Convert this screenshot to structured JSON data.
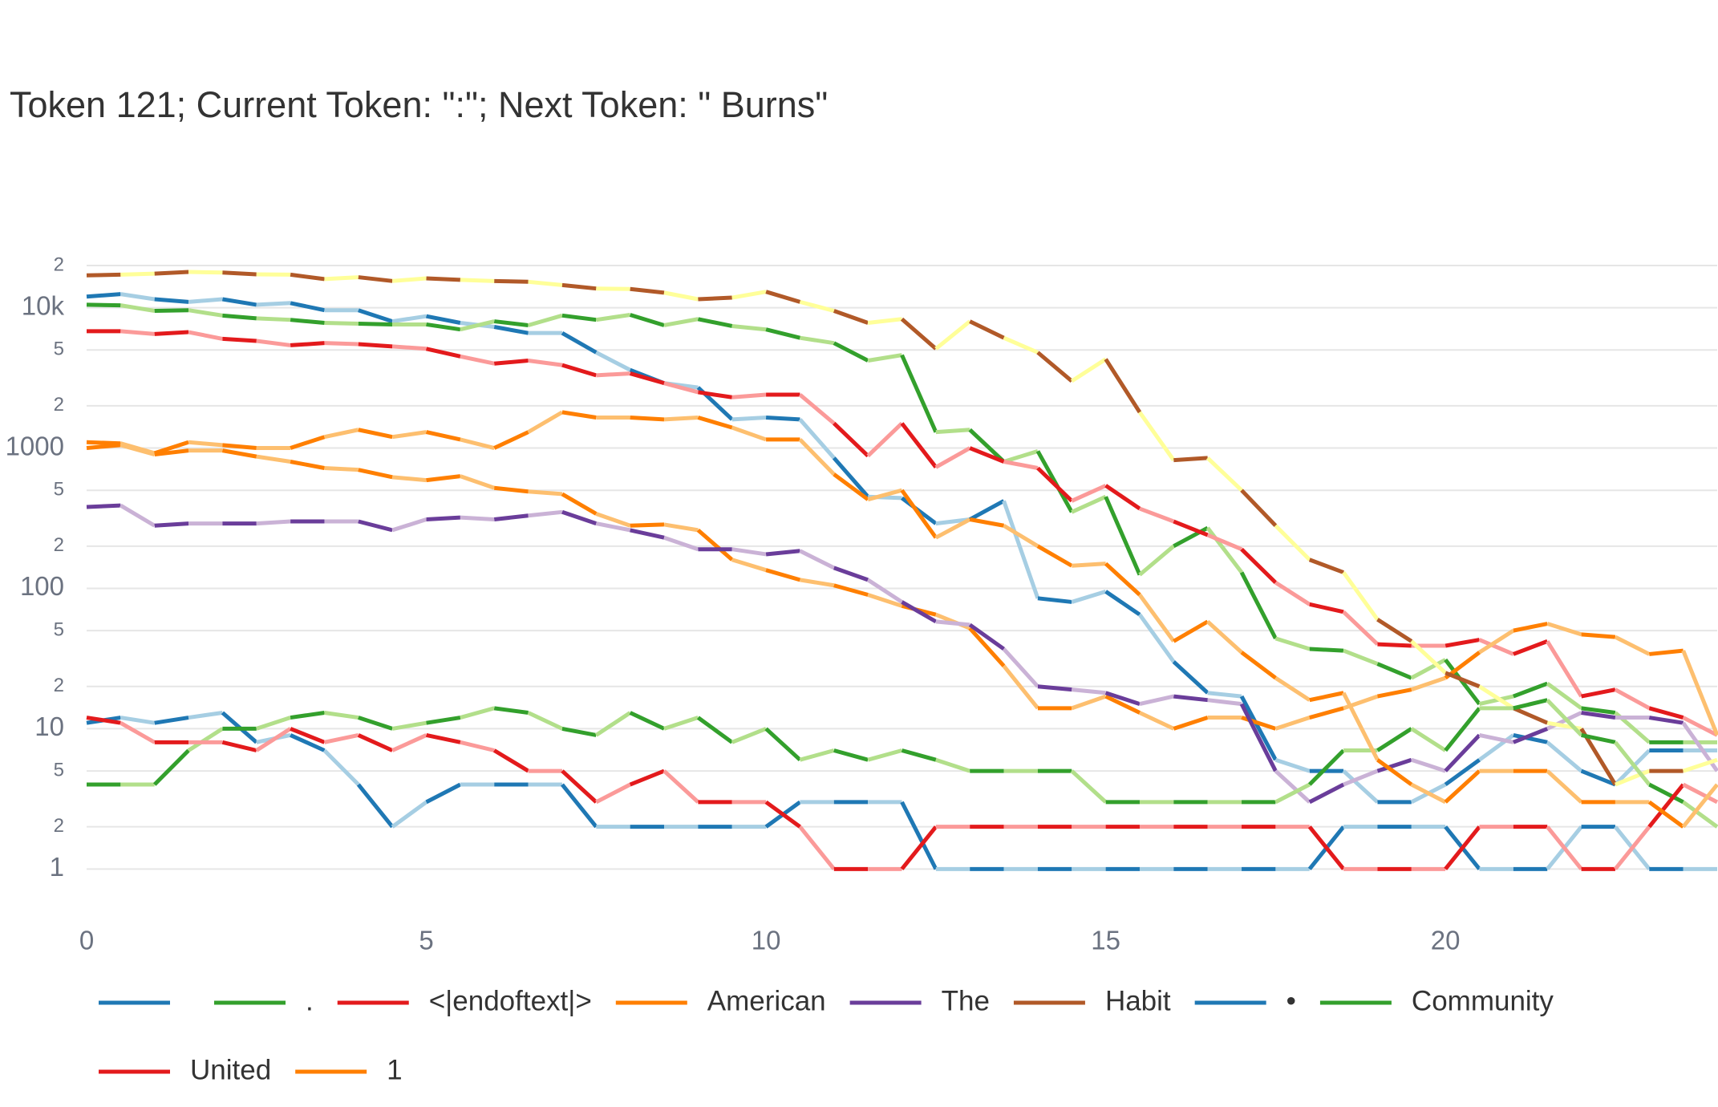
{
  "chart_data": {
    "type": "line",
    "title": "Token 121; Current Token: \":\"; Next Token: \" Burns\"",
    "x": [
      0,
      0.5,
      1,
      1.5,
      2,
      2.5,
      3,
      3.5,
      4,
      4.5,
      5,
      5.5,
      6,
      6.5,
      7,
      7.5,
      8,
      8.5,
      9,
      9.5,
      10,
      10.5,
      11,
      11.5,
      12,
      12.5,
      13,
      13.5,
      14,
      14.5,
      15,
      15.5,
      16,
      16.5,
      17,
      17.5,
      18,
      18.5,
      19,
      19.5,
      20,
      20.5,
      21,
      21.5,
      22,
      22.5,
      23,
      23.5,
      24
    ],
    "xlim": [
      0,
      24
    ],
    "xticks": [
      0,
      5,
      10,
      15,
      20
    ],
    "yscale": "log",
    "ylim": [
      0.5,
      25000
    ],
    "yticks": [
      1,
      2,
      5,
      10,
      {
        "value": 20,
        "label": "2"
      },
      {
        "value": 50,
        "label": "5"
      },
      100,
      {
        "value": 200,
        "label": "2"
      },
      {
        "value": 500,
        "label": "5"
      },
      1000,
      {
        "value": 2000,
        "label": "2"
      },
      {
        "value": 5000,
        "label": "5"
      },
      {
        "value": 10000,
        "label": "10k"
      },
      {
        "value": 20000,
        "label": "2"
      }
    ],
    "grid": true,
    "legend": "bottom",
    "series": [
      {
        "name": " ",
        "colors": [
          "#1f78b4",
          "#a6cee3"
        ],
        "values": [
          12000,
          12500,
          11500,
          11000,
          11500,
          10500,
          10800,
          9600,
          9600,
          8000,
          8700,
          7800,
          7300,
          6600,
          6600,
          4800,
          3600,
          2900,
          2700,
          1600,
          1650,
          1600,
          850,
          450,
          440,
          290,
          310,
          420,
          85,
          80,
          95,
          65,
          30,
          18,
          17,
          6,
          5,
          5,
          3,
          3,
          4,
          6,
          9,
          8,
          5,
          4,
          7,
          7,
          7
        ]
      },
      {
        "name": ".",
        "colors": [
          "#33a02c",
          "#b2df8a"
        ],
        "values": [
          10500,
          10400,
          9500,
          9600,
          8800,
          8400,
          8200,
          7800,
          7700,
          7600,
          7600,
          7000,
          8000,
          7500,
          8800,
          8200,
          8900,
          7500,
          8300,
          7400,
          7000,
          6100,
          5600,
          4200,
          4600,
          1300,
          1350,
          800,
          950,
          350,
          450,
          125,
          200,
          270,
          130,
          44,
          37,
          36,
          29,
          23,
          31,
          15,
          17,
          21,
          14,
          13,
          8,
          8,
          8
        ]
      },
      {
        "name": "<|endoftext|>",
        "colors": [
          "#e31a1c",
          "#fb9a99"
        ],
        "values": [
          6800,
          6800,
          6500,
          6700,
          6000,
          5800,
          5400,
          5600,
          5500,
          5300,
          5100,
          4500,
          4000,
          4200,
          3900,
          3300,
          3400,
          2900,
          2500,
          2300,
          2400,
          2400,
          1500,
          880,
          1500,
          730,
          1000,
          800,
          720,
          420,
          540,
          370,
          300,
          240,
          190,
          110,
          77,
          68,
          40,
          39,
          39,
          43,
          34,
          42,
          17,
          19,
          14,
          12,
          9
        ]
      },
      {
        "name": "American",
        "colors": [
          "#ff7f00",
          "#fdbf6f"
        ],
        "values": [
          1000,
          1050,
          900,
          960,
          960,
          870,
          800,
          720,
          700,
          620,
          590,
          630,
          520,
          490,
          470,
          340,
          280,
          285,
          260,
          160,
          135,
          115,
          105,
          90,
          75,
          65,
          52,
          28,
          14,
          14,
          17,
          13,
          10,
          12,
          12,
          10,
          12,
          14,
          17,
          19,
          23,
          35,
          50,
          56,
          47,
          45,
          34,
          36,
          9
        ]
      },
      {
        "name": "The",
        "colors": [
          "#6a3d9a",
          "#cab2d6"
        ],
        "values": [
          380,
          390,
          280,
          290,
          290,
          290,
          300,
          300,
          300,
          260,
          310,
          320,
          310,
          330,
          350,
          290,
          260,
          230,
          190,
          190,
          175,
          185,
          140,
          115,
          80,
          58,
          55,
          37,
          20,
          19,
          18,
          15,
          17,
          16,
          15,
          5,
          3,
          4,
          5,
          6,
          5,
          9,
          8,
          10,
          13,
          12,
          12,
          11,
          5
        ]
      },
      {
        "name": "Habit",
        "colors": [
          "#b15928",
          "#ffff99"
        ],
        "values": [
          17000,
          17200,
          17500,
          18000,
          17800,
          17300,
          17200,
          16000,
          16500,
          15500,
          16200,
          15800,
          15500,
          15300,
          14500,
          13700,
          13600,
          12800,
          11500,
          11800,
          13000,
          11000,
          9500,
          7800,
          8300,
          5100,
          8000,
          6100,
          4800,
          3000,
          4300,
          1800,
          820,
          850,
          500,
          280,
          160,
          130,
          60,
          42,
          25,
          20,
          14,
          11,
          10,
          4,
          5,
          5,
          6
        ]
      },
      {
        "name": "•",
        "colors": [
          "#1f78b4",
          "#a6cee3"
        ],
        "values": [
          11,
          12,
          11,
          12,
          13,
          8,
          9,
          7,
          4,
          2,
          3,
          4,
          4,
          4,
          4,
          2,
          2,
          2,
          2,
          2,
          2,
          3,
          3,
          3,
          3,
          1,
          1,
          1,
          1,
          1,
          1,
          1,
          1,
          1,
          1,
          1,
          1,
          2,
          2,
          2,
          2,
          1,
          1,
          1,
          2,
          2,
          1,
          1,
          1
        ]
      },
      {
        "name": "Community",
        "colors": [
          "#33a02c",
          "#b2df8a"
        ],
        "values": [
          4,
          4,
          4,
          7,
          10,
          10,
          12,
          13,
          12,
          10,
          11,
          12,
          14,
          13,
          10,
          9,
          13,
          10,
          12,
          8,
          10,
          6,
          7,
          6,
          7,
          6,
          5,
          5,
          5,
          5,
          3,
          3,
          3,
          3,
          3,
          3,
          4,
          7,
          7,
          10,
          7,
          14,
          14,
          16,
          9,
          8,
          4,
          3,
          2
        ]
      },
      {
        "name": "United",
        "colors": [
          "#e31a1c",
          "#fb9a99"
        ],
        "values": [
          12,
          11,
          8,
          8,
          8,
          7,
          10,
          8,
          9,
          7,
          9,
          8,
          7,
          5,
          5,
          3,
          4,
          5,
          3,
          3,
          3,
          2,
          1,
          1,
          1,
          2,
          2,
          2,
          2,
          2,
          2,
          2,
          2,
          2,
          2,
          2,
          2,
          1,
          1,
          1,
          1,
          2,
          2,
          2,
          1,
          1,
          2,
          4,
          3
        ]
      },
      {
        "name": "1",
        "colors": [
          "#ff7f00",
          "#fdbf6f"
        ],
        "values": [
          1100,
          1080,
          920,
          1100,
          1050,
          1000,
          1000,
          1200,
          1350,
          1200,
          1300,
          1150,
          1000,
          1300,
          1800,
          1650,
          1650,
          1600,
          1650,
          1400,
          1150,
          1150,
          650,
          430,
          500,
          230,
          310,
          280,
          200,
          145,
          150,
          90,
          42,
          58,
          35,
          23,
          16,
          18,
          6,
          4,
          3,
          5,
          5,
          5,
          3,
          3,
          3,
          2,
          4
        ]
      }
    ]
  }
}
